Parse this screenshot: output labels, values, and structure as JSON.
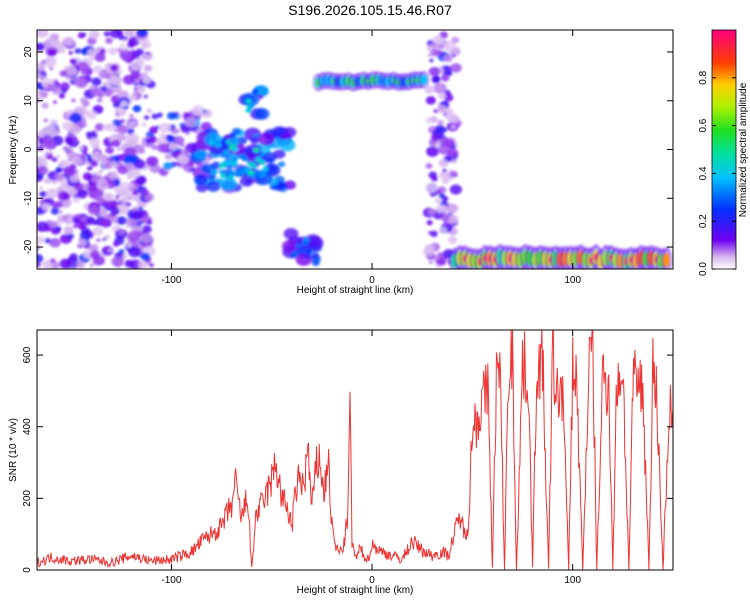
{
  "title": "S196.2026.105.15.46.R07",
  "chart_data": [
    {
      "type": "heatmap",
      "xlabel": "Height of straight line (km)",
      "ylabel": "Frequency (Hz)",
      "xlim": [
        -167,
        150
      ],
      "ylim": [
        -24.5,
        24.5
      ],
      "xticks": [
        -100,
        0,
        100
      ],
      "yticks": [
        -20,
        -10,
        0,
        10,
        20
      ],
      "colorbar": {
        "label": "Normalized spectral amplitude",
        "range": [
          0.0,
          1.0
        ],
        "ticks": [
          0.0,
          0.2,
          0.4,
          0.6,
          0.8
        ],
        "tick_labels": [
          "0.0",
          "0.2",
          "0.4",
          "0.6",
          "0.8"
        ]
      },
      "features": [
        {
          "x": [
            -167,
            -110
          ],
          "freq": [
            -24,
            24
          ],
          "amplitude": 0.2,
          "kind": "scatter"
        },
        {
          "x": [
            -110,
            -80
          ],
          "freq": [
            -5,
            8
          ],
          "amplitude": 0.3,
          "kind": "scatter"
        },
        {
          "x": [
            -90,
            -40
          ],
          "freq": [
            -8,
            4
          ],
          "amplitude": 0.45,
          "kind": "blob"
        },
        {
          "x": [
            -65,
            -55
          ],
          "freq": [
            7,
            12
          ],
          "amplitude": 0.45,
          "kind": "blob"
        },
        {
          "x": [
            -42,
            -28
          ],
          "freq": [
            -24,
            -17
          ],
          "amplitude": 0.35,
          "kind": "blob"
        },
        {
          "x": [
            -28,
            27
          ],
          "freq": [
            13,
            15
          ],
          "amplitude": 0.5,
          "kind": "band"
        },
        {
          "x": [
            28,
            42
          ],
          "freq": [
            -24,
            24
          ],
          "amplitude": 0.2,
          "kind": "scatter"
        },
        {
          "x": [
            40,
            148
          ],
          "freq": [
            -24,
            -21
          ],
          "amplitude": 0.85,
          "kind": "band"
        }
      ]
    },
    {
      "type": "line",
      "xlabel": "Height of straight line (km)",
      "ylabel": "SNR (10 * v/v)",
      "xlim": [
        -167,
        150
      ],
      "ylim": [
        0,
        670
      ],
      "xticks": [
        -100,
        0,
        100
      ],
      "yticks": [
        0,
        200,
        400,
        600
      ],
      "color": "#ee3333",
      "series": [
        {
          "x": [
            -167,
            -160,
            -150,
            -140,
            -130,
            -120,
            -110,
            -100,
            -90,
            -85,
            -80,
            -75,
            -72,
            -70,
            -68,
            -65,
            -62,
            -60,
            -58,
            -55,
            -52,
            -50,
            -48,
            -45,
            -42,
            -40,
            -38,
            -36,
            -34,
            -32,
            -30,
            -28,
            -26,
            -24,
            -22,
            -20,
            -18,
            -16,
            -14,
            -12,
            -11,
            -10,
            -8,
            -6,
            -4,
            -2,
            0,
            5,
            10,
            15,
            20,
            25,
            30,
            35,
            38,
            40,
            42,
            44,
            46,
            48,
            50,
            52,
            54,
            56,
            58,
            60,
            62,
            64,
            66,
            68,
            70,
            72,
            75,
            78,
            80,
            82,
            85,
            88,
            90,
            92,
            95,
            98,
            100,
            102,
            105,
            108,
            110,
            112,
            115,
            118,
            120,
            122,
            125,
            128,
            130,
            132,
            135,
            138,
            140,
            142,
            145,
            148,
            150
          ],
          "y": [
            20,
            35,
            25,
            30,
            20,
            40,
            25,
            30,
            50,
            80,
            100,
            120,
            160,
            180,
            240,
            140,
            210,
            0,
            150,
            180,
            220,
            250,
            300,
            200,
            170,
            120,
            220,
            260,
            230,
            340,
            170,
            280,
            320,
            200,
            320,
            120,
            60,
            50,
            70,
            160,
            470,
            80,
            30,
            60,
            40,
            30,
            70,
            50,
            40,
            30,
            80,
            55,
            40,
            50,
            40,
            80,
            120,
            150,
            100,
            130,
            400,
            420,
            450,
            480,
            500,
            0,
            560,
            520,
            0,
            560,
            600,
            0,
            580,
            520,
            0,
            560,
            580,
            0,
            600,
            480,
            510,
            0,
            570,
            520,
            0,
            560,
            620,
            0,
            540,
            520,
            0,
            530,
            560,
            0,
            510,
            520,
            500,
            0,
            560,
            480,
            0,
            440,
            450
          ]
        }
      ]
    }
  ]
}
